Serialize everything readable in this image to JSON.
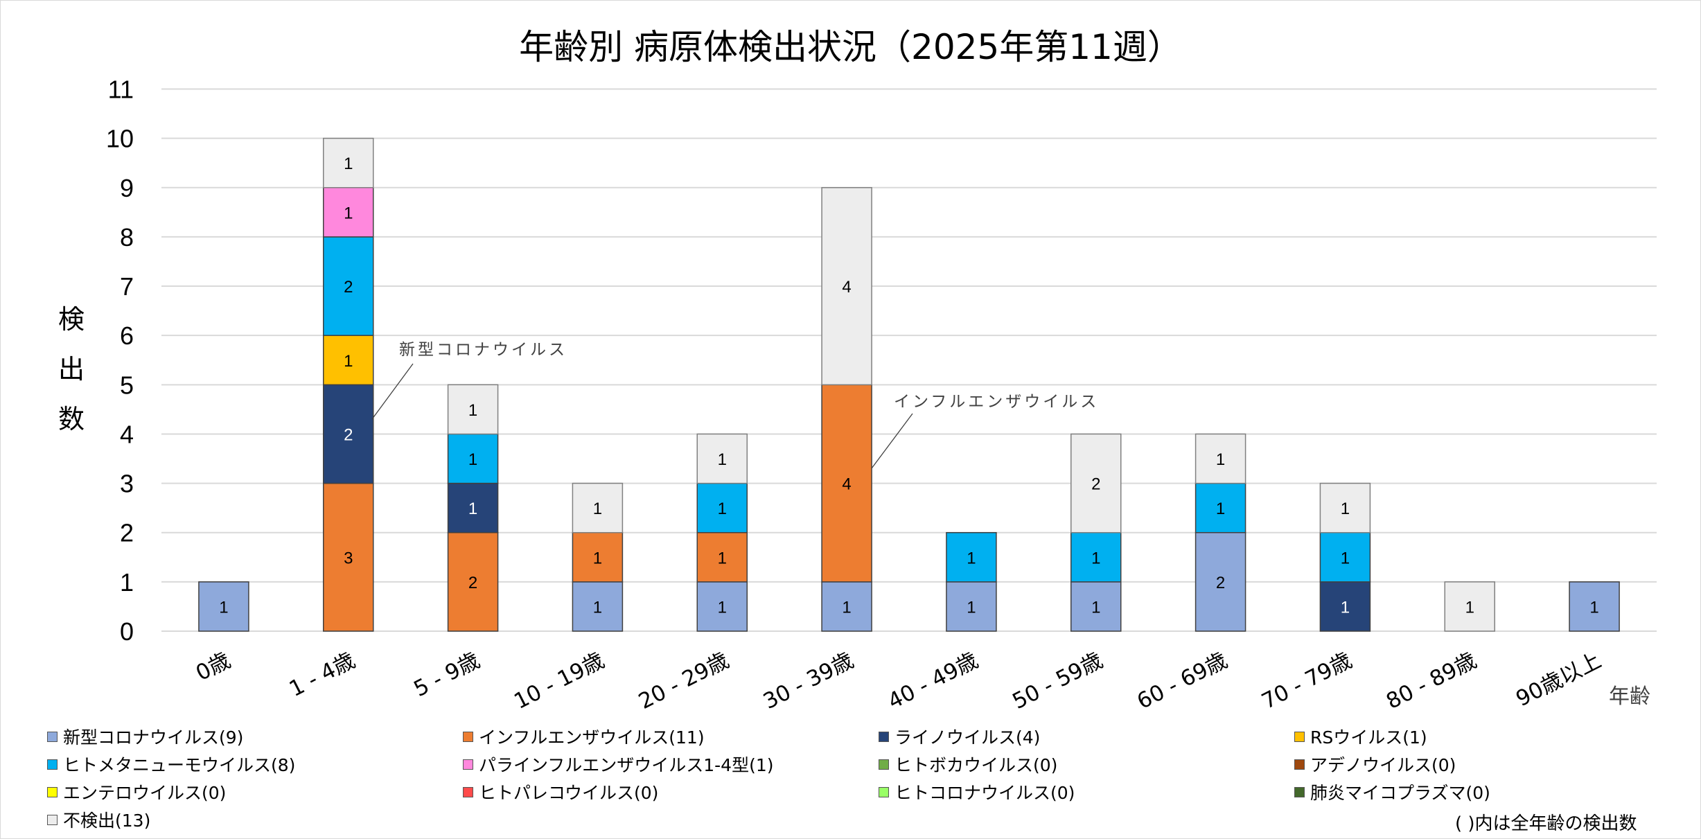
{
  "chart_data": {
    "type": "bar",
    "stacked": true,
    "title": "年齢別 病原体検出状況（2025年第11週）",
    "xlabel": "年齢",
    "ylabel": "検出数",
    "ylim": [
      0,
      11
    ],
    "yticks": [
      0,
      1,
      2,
      3,
      4,
      5,
      6,
      7,
      8,
      9,
      10,
      11
    ],
    "grid": true,
    "legend_position": "bottom",
    "categories": [
      "0歳",
      "1 - 4歳",
      "5 - 9歳",
      "10 - 19歳",
      "20 - 29歳",
      "30 - 39歳",
      "40 - 49歳",
      "50 - 59歳",
      "60 - 69歳",
      "70 - 79歳",
      "80 - 89歳",
      "90歳以上"
    ],
    "series": [
      {
        "name": "新型コロナウイルス",
        "total": 9,
        "color": "#8EA9DB",
        "label_color": "#000000",
        "values": [
          1,
          0,
          0,
          1,
          1,
          1,
          1,
          1,
          2,
          0,
          0,
          1
        ]
      },
      {
        "name": "インフルエンザウイルス",
        "total": 11,
        "color": "#ED7D31",
        "label_color": "#000000",
        "values": [
          0,
          3,
          2,
          1,
          1,
          4,
          0,
          0,
          0,
          0,
          0,
          0
        ]
      },
      {
        "name": "ライノウイルス",
        "total": 4,
        "color": "#264478",
        "label_color": "#FFFFFF",
        "values": [
          0,
          2,
          1,
          0,
          0,
          0,
          0,
          0,
          0,
          1,
          0,
          0
        ]
      },
      {
        "name": "RSウイルス",
        "total": 1,
        "color": "#FFC000",
        "label_color": "#000000",
        "values": [
          0,
          1,
          0,
          0,
          0,
          0,
          0,
          0,
          0,
          0,
          0,
          0
        ]
      },
      {
        "name": "ヒトメタニューモウイルス",
        "total": 8,
        "color": "#00B0F0",
        "label_color": "#000000",
        "values": [
          0,
          2,
          1,
          0,
          1,
          0,
          1,
          1,
          1,
          1,
          0,
          0
        ]
      },
      {
        "name": "パラインフルエンザウイルス1-4型",
        "total": 1,
        "color": "#FF88DD",
        "label_color": "#000000",
        "values": [
          0,
          1,
          0,
          0,
          0,
          0,
          0,
          0,
          0,
          0,
          0,
          0
        ]
      },
      {
        "name": "ヒトボカウイルス",
        "total": 0,
        "color": "#70AD47",
        "label_color": "#000000",
        "values": [
          0,
          0,
          0,
          0,
          0,
          0,
          0,
          0,
          0,
          0,
          0,
          0
        ]
      },
      {
        "name": "アデノウイルス",
        "total": 0,
        "color": "#9E480E",
        "label_color": "#FFFFFF",
        "values": [
          0,
          0,
          0,
          0,
          0,
          0,
          0,
          0,
          0,
          0,
          0,
          0
        ]
      },
      {
        "name": "エンテロウイルス",
        "total": 0,
        "color": "#FFFF00",
        "label_color": "#000000",
        "values": [
          0,
          0,
          0,
          0,
          0,
          0,
          0,
          0,
          0,
          0,
          0,
          0
        ]
      },
      {
        "name": "ヒトパレコウイルス",
        "total": 0,
        "color": "#FF4B4B",
        "label_color": "#000000",
        "values": [
          0,
          0,
          0,
          0,
          0,
          0,
          0,
          0,
          0,
          0,
          0,
          0
        ]
      },
      {
        "name": "ヒトコロナウイルス",
        "total": 0,
        "color": "#99FF66",
        "label_color": "#000000",
        "values": [
          0,
          0,
          0,
          0,
          0,
          0,
          0,
          0,
          0,
          0,
          0,
          0
        ]
      },
      {
        "name": "肺炎マイコプラズマ",
        "total": 0,
        "color": "#43682B",
        "label_color": "#FFFFFF",
        "values": [
          0,
          0,
          0,
          0,
          0,
          0,
          0,
          0,
          0,
          0,
          0,
          0
        ]
      },
      {
        "name": "不検出",
        "total": 13,
        "color": "#EDEDED",
        "label_color": "#000000",
        "values": [
          0,
          1,
          1,
          1,
          1,
          4,
          0,
          2,
          1,
          1,
          1,
          0
        ]
      }
    ],
    "legend_labels": [
      "新型コロナウイルス(9)",
      "インフルエンザウイルス(11)",
      "ライノウイルス(4)",
      "RSウイルス(1)",
      "ヒトメタニューモウイルス(8)",
      "パラインフルエンザウイルス1-4型(1)",
      "ヒトボカウイルス(0)",
      "アデノウイルス(0)",
      "エンテロウイルス(0)",
      "ヒトパレコウイルス(0)",
      "ヒトコロナウイルス(0)",
      "肺炎マイコプラズマ(0)",
      "不検出(13)"
    ],
    "annotations": [
      {
        "text": "新型コロナウイルス",
        "category": "1 - 4歳",
        "series": "ライノウイルス"
      },
      {
        "text": "インフルエンザウイルス",
        "category": "30 - 39歳",
        "series": "インフルエンザウイルス"
      }
    ],
    "note": "( )内は全年齢の検出数"
  }
}
